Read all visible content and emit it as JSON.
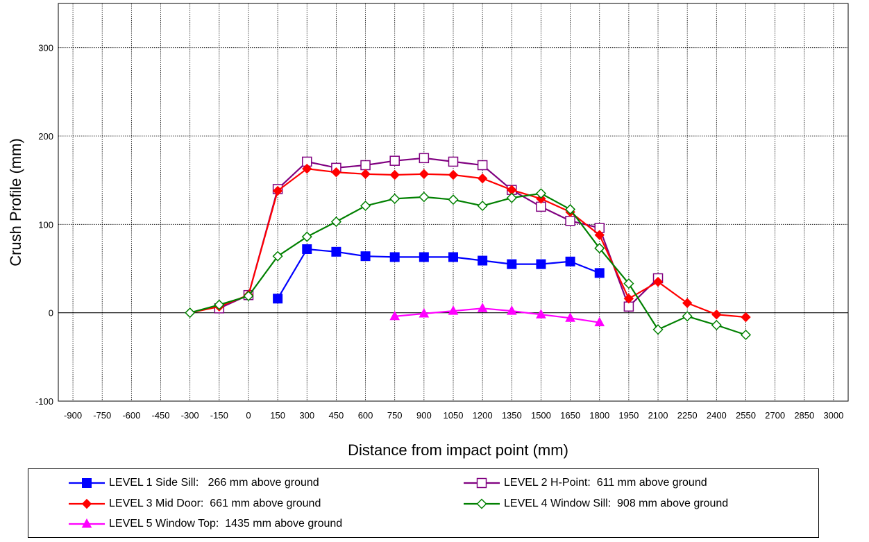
{
  "chart_data": {
    "type": "line",
    "xlabel": "Distance from impact point (mm)",
    "ylabel": "Crush Profile (mm)",
    "xlim": [
      -975,
      3075
    ],
    "ylim": [
      -100,
      350
    ],
    "x_ticks": [
      "-900",
      "-750",
      "-600",
      "-450",
      "-300",
      "-150",
      "0",
      "150",
      "300",
      "450",
      "600",
      "750",
      "900",
      "1050",
      "1200",
      "1350",
      "1500",
      "1650",
      "1800",
      "1950",
      "2100",
      "2250",
      "2400",
      "2550",
      "2700",
      "2850",
      "3000"
    ],
    "y_ticks": [
      "-100",
      "0",
      "100",
      "200",
      "300"
    ],
    "y_tick_values": [
      -100,
      0,
      100,
      200,
      300
    ],
    "grid": "on",
    "legend_position": "bottom",
    "series": [
      {
        "name": "LEVEL 1 Side Sill:   266 mm above ground",
        "color": "#0000ff",
        "marker": "square-filled",
        "x": [
          150,
          300,
          450,
          600,
          750,
          900,
          1050,
          1200,
          1350,
          1500,
          1650,
          1800
        ],
        "y": [
          16,
          72,
          69,
          64,
          63,
          63,
          63,
          59,
          55,
          55,
          58,
          45
        ]
      },
      {
        "name": "LEVEL 2 H-Point:  611 mm above ground",
        "color": "#800080",
        "marker": "square-open",
        "x": [
          -150,
          0,
          150,
          300,
          450,
          600,
          750,
          900,
          1050,
          1200,
          1350,
          1500,
          1650,
          1800,
          1950,
          2100
        ],
        "y": [
          5,
          20,
          140,
          171,
          164,
          167,
          172,
          175,
          171,
          167,
          139,
          120,
          104,
          96,
          7,
          39
        ]
      },
      {
        "name": "LEVEL 3 Mid Door:  661 mm above ground",
        "color": "#ff0000",
        "marker": "diamond-filled",
        "x": [
          -300,
          -150,
          0,
          150,
          300,
          450,
          600,
          750,
          900,
          1050,
          1200,
          1350,
          1500,
          1650,
          1800,
          1950,
          2100,
          2250,
          2400,
          2550
        ],
        "y": [
          0,
          7,
          20,
          138,
          163,
          159,
          157,
          156,
          157,
          156,
          152,
          139,
          129,
          114,
          88,
          16,
          35,
          11,
          -2,
          -5
        ]
      },
      {
        "name": "LEVEL 4 Window Sill:  908 mm above ground",
        "color": "#008000",
        "marker": "diamond-open",
        "x": [
          -300,
          -150,
          0,
          150,
          300,
          450,
          600,
          750,
          900,
          1050,
          1200,
          1350,
          1500,
          1650,
          1800,
          1950,
          2100,
          2250,
          2400,
          2550
        ],
        "y": [
          0,
          9,
          19,
          64,
          86,
          103,
          121,
          129,
          131,
          128,
          121,
          130,
          135,
          117,
          73,
          33,
          -19,
          -4,
          -14,
          -25
        ]
      },
      {
        "name": "LEVEL 5 Window Top:  1435 mm above ground",
        "color": "#ff00ff",
        "marker": "triangle-filled",
        "x": [
          750,
          900,
          1050,
          1200,
          1350,
          1500,
          1650,
          1800
        ],
        "y": [
          -4,
          -1,
          2,
          5,
          2,
          -2,
          -6,
          -11
        ]
      }
    ]
  }
}
